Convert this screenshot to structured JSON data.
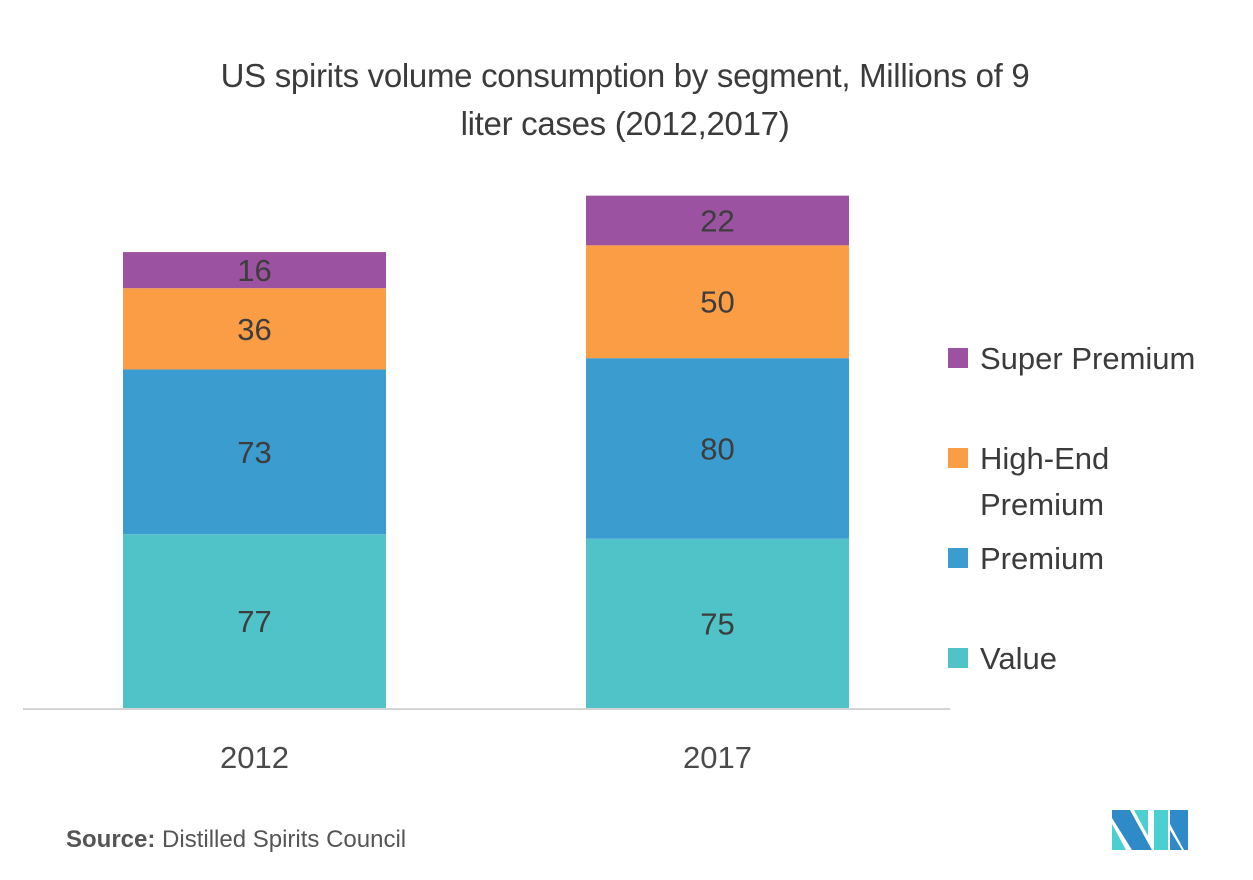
{
  "chart_data": {
    "type": "bar",
    "stacked": true,
    "title": "US spirits volume consumption by segment, Millions of 9 liter cases (2012,2017)",
    "title_lines": [
      "US spirits volume consumption by segment, Millions of 9",
      "liter cases (2012,2017)"
    ],
    "xlabel": "",
    "ylabel": "",
    "categories": [
      "2012",
      "2017"
    ],
    "series": [
      {
        "name": "Value",
        "color": "#4FC3C8",
        "values": [
          77,
          75
        ]
      },
      {
        "name": "Premium",
        "color": "#3B9CCF",
        "values": [
          73,
          80
        ]
      },
      {
        "name": "High-End Premium",
        "color": "#FB9D45",
        "values": [
          36,
          50
        ]
      },
      {
        "name": "Super Premium",
        "color": "#9B52A0",
        "values": [
          16,
          22
        ]
      }
    ],
    "ylim": [
      0,
      227
    ],
    "grid": false,
    "y_axis_visible": false,
    "data_labels": true,
    "legend_position": "right"
  },
  "legend": {
    "items": [
      {
        "label": "Super Premium",
        "color": "#9B52A0"
      },
      {
        "label": "High-End Premium",
        "color": "#FB9D45"
      },
      {
        "label": "Premium",
        "color": "#3B9CCF"
      },
      {
        "label": "Value",
        "color": "#4FC3C8"
      }
    ]
  },
  "source": {
    "prefix": "Source:",
    "text": "Distilled Spirits Council"
  },
  "logo": {
    "name": "brand-logo",
    "colors": [
      "#2E8BC7",
      "#4CCFD0"
    ]
  }
}
